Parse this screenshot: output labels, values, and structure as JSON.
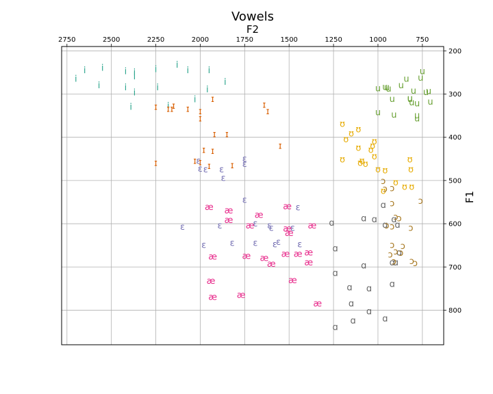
{
  "chart_data": {
    "type": "scatter",
    "title": "Vowels",
    "xlabel": "F2",
    "ylabel": "F1",
    "xlim": [
      2780,
      630
    ],
    "ylim": [
      880,
      190
    ],
    "x_axis_position": "top",
    "y_axis_position": "right",
    "grid": true,
    "x_ticks": [
      2750,
      2500,
      2250,
      2000,
      1750,
      1500,
      1250,
      1000,
      750
    ],
    "y_ticks": [
      200,
      300,
      400,
      500,
      600,
      700,
      800
    ],
    "series": [
      {
        "symbol": "i",
        "color": "#2ca58d",
        "points": [
          [
            2700,
            265
          ],
          [
            2650,
            245
          ],
          [
            2550,
            240
          ],
          [
            2570,
            280
          ],
          [
            2420,
            248
          ],
          [
            2420,
            285
          ],
          [
            2370,
            250
          ],
          [
            2370,
            260
          ],
          [
            2370,
            297
          ],
          [
            2390,
            330
          ],
          [
            2250,
            243
          ],
          [
            2240,
            285
          ],
          [
            2130,
            233
          ],
          [
            2070,
            245
          ],
          [
            2180,
            328
          ],
          [
            2030,
            313
          ],
          [
            1950,
            245
          ],
          [
            1960,
            290
          ],
          [
            1860,
            272
          ]
        ]
      },
      {
        "symbol": "ɪ",
        "color": "#d95f02",
        "points": [
          [
            2250,
            330
          ],
          [
            2180,
            335
          ],
          [
            2160,
            335
          ],
          [
            2150,
            328
          ],
          [
            2070,
            335
          ],
          [
            2000,
            340
          ],
          [
            2000,
            357
          ],
          [
            1930,
            312
          ],
          [
            1920,
            393
          ],
          [
            1850,
            393
          ],
          [
            1640,
            325
          ],
          [
            1620,
            340
          ],
          [
            2250,
            460
          ],
          [
            2030,
            455
          ],
          [
            2000,
            458
          ],
          [
            1980,
            430
          ],
          [
            1950,
            467
          ],
          [
            1930,
            432
          ],
          [
            1820,
            465
          ],
          [
            1550,
            420
          ]
        ]
      },
      {
        "symbol": "ʊ",
        "color": "#e6ab02",
        "points": [
          [
            1200,
            370
          ],
          [
            1110,
            382
          ],
          [
            1150,
            392
          ],
          [
            1180,
            405
          ],
          [
            1110,
            425
          ],
          [
            1030,
            420
          ],
          [
            1020,
            410
          ],
          [
            1040,
            430
          ],
          [
            1020,
            445
          ],
          [
            1090,
            455
          ],
          [
            1100,
            460
          ],
          [
            1070,
            462
          ],
          [
            1200,
            452
          ],
          [
            1000,
            475
          ],
          [
            970,
            525
          ],
          [
            960,
            477
          ],
          [
            900,
            505
          ],
          [
            850,
            515
          ],
          [
            815,
            475
          ],
          [
            820,
            452
          ],
          [
            810,
            515
          ]
        ]
      },
      {
        "symbol": "u",
        "color": "#6aa135",
        "points": [
          [
            1000,
            287
          ],
          [
            960,
            284
          ],
          [
            950,
            285
          ],
          [
            940,
            288
          ],
          [
            920,
            312
          ],
          [
            870,
            280
          ],
          [
            840,
            265
          ],
          [
            820,
            312
          ],
          [
            820,
            310
          ],
          [
            810,
            320
          ],
          [
            800,
            293
          ],
          [
            780,
            322
          ],
          [
            760,
            263
          ],
          [
            750,
            248
          ],
          [
            730,
            296
          ],
          [
            715,
            294
          ],
          [
            705,
            318
          ],
          [
            1000,
            343
          ],
          [
            910,
            348
          ],
          [
            780,
            350
          ],
          [
            780,
            357
          ]
        ]
      },
      {
        "symbol": "ɛ",
        "color": "#7570b3",
        "points": [
          [
            2010,
            455
          ],
          [
            2000,
            473
          ],
          [
            1970,
            475
          ],
          [
            1880,
            475
          ],
          [
            1870,
            495
          ],
          [
            1750,
            450
          ],
          [
            1750,
            462
          ],
          [
            1750,
            545
          ],
          [
            1890,
            605
          ],
          [
            1690,
            600
          ],
          [
            1610,
            605
          ],
          [
            1600,
            610
          ],
          [
            1450,
            563
          ],
          [
            1480,
            610
          ],
          [
            1980,
            650
          ],
          [
            1820,
            645
          ],
          [
            1690,
            645
          ],
          [
            1580,
            648
          ],
          [
            1560,
            643
          ],
          [
            1440,
            648
          ],
          [
            2100,
            608
          ]
        ]
      },
      {
        "symbol": "æ",
        "color": "#e7298a",
        "points": [
          [
            1950,
            562
          ],
          [
            1840,
            570
          ],
          [
            1840,
            592
          ],
          [
            1670,
            580
          ],
          [
            1720,
            605
          ],
          [
            1510,
            560
          ],
          [
            1510,
            612
          ],
          [
            1500,
            622
          ],
          [
            1370,
            605
          ],
          [
            1930,
            677
          ],
          [
            1740,
            675
          ],
          [
            1640,
            680
          ],
          [
            1600,
            693
          ],
          [
            1520,
            670
          ],
          [
            1450,
            670
          ],
          [
            1390,
            667
          ],
          [
            1390,
            690
          ],
          [
            1940,
            733
          ],
          [
            1480,
            731
          ],
          [
            1930,
            770
          ],
          [
            1770,
            765
          ],
          [
            1340,
            785
          ]
        ]
      },
      {
        "symbol": "ɑ",
        "color": "#666666",
        "points": [
          [
            1260,
            598
          ],
          [
            1080,
            588
          ],
          [
            1020,
            590
          ],
          [
            970,
            557
          ],
          [
            960,
            603
          ],
          [
            910,
            590
          ],
          [
            890,
            603
          ],
          [
            1240,
            658
          ],
          [
            1240,
            715
          ],
          [
            1080,
            697
          ],
          [
            1160,
            748
          ],
          [
            1150,
            785
          ],
          [
            1050,
            750
          ],
          [
            1050,
            803
          ],
          [
            960,
            820
          ],
          [
            1140,
            825
          ],
          [
            1240,
            840
          ],
          [
            920,
            690
          ],
          [
            900,
            690
          ],
          [
            920,
            740
          ],
          [
            880,
            667
          ]
        ]
      },
      {
        "symbol": "ɔ",
        "color": "#a6761d",
        "points": [
          [
            970,
            502
          ],
          [
            920,
            518
          ],
          [
            960,
            520
          ],
          [
            920,
            553
          ],
          [
            900,
            585
          ],
          [
            880,
            588
          ],
          [
            950,
            605
          ],
          [
            920,
            607
          ],
          [
            815,
            610
          ],
          [
            760,
            548
          ],
          [
            920,
            650
          ],
          [
            860,
            652
          ],
          [
            930,
            672
          ],
          [
            900,
            665
          ],
          [
            870,
            668
          ],
          [
            910,
            688
          ],
          [
            810,
            687
          ],
          [
            790,
            692
          ]
        ]
      }
    ]
  }
}
